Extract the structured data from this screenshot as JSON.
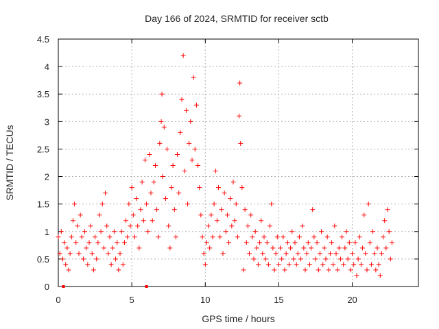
{
  "chart_data": {
    "type": "scatter",
    "title": "Day 166 of 2024, SRMTID for receiver sctb",
    "xlabel": "GPS time / hours",
    "ylabel": "SRMTID / TECUs",
    "xlim": [
      0,
      24.5
    ],
    "ylim": [
      0,
      4.5
    ],
    "xticks": [
      0,
      5,
      10,
      15,
      20
    ],
    "yticks": [
      0,
      0.5,
      1,
      1.5,
      2,
      2.5,
      3,
      3.5,
      4,
      4.5
    ],
    "xtick_labels": [
      "0",
      "5",
      "10",
      "15",
      "20"
    ],
    "ytick_labels": [
      "0",
      "0.5",
      "1",
      "1.5",
      "2",
      "2.5",
      "3",
      "3.5",
      "4",
      "4.5"
    ],
    "grid": true,
    "marker": "+",
    "color": "#ff0000",
    "series": [
      {
        "name": "SRMTID",
        "points": [
          [
            0.0,
            0.9
          ],
          [
            0.1,
            0.6
          ],
          [
            0.2,
            1.0
          ],
          [
            0.3,
            0.5
          ],
          [
            0.4,
            0.8
          ],
          [
            0.5,
            0.4
          ],
          [
            0.6,
            0.7
          ],
          [
            0.7,
            0.3
          ],
          [
            0.8,
            0.6
          ],
          [
            0.9,
            0.9
          ],
          [
            1.0,
            1.2
          ],
          [
            1.1,
            1.5
          ],
          [
            1.2,
            0.8
          ],
          [
            1.3,
            1.1
          ],
          [
            1.4,
            0.6
          ],
          [
            1.5,
            1.3
          ],
          [
            1.6,
            0.9
          ],
          [
            1.7,
            0.5
          ],
          [
            1.8,
            1.0
          ],
          [
            1.9,
            0.7
          ],
          [
            2.0,
            0.4
          ],
          [
            2.1,
            0.8
          ],
          [
            2.2,
            1.1
          ],
          [
            2.3,
            0.6
          ],
          [
            2.4,
            0.3
          ],
          [
            2.5,
            0.9
          ],
          [
            2.6,
            0.5
          ],
          [
            2.7,
            0.8
          ],
          [
            2.8,
            1.3
          ],
          [
            2.9,
            1.0
          ],
          [
            3.0,
            1.5
          ],
          [
            3.1,
            0.7
          ],
          [
            3.2,
            1.7
          ],
          [
            3.3,
            1.1
          ],
          [
            3.4,
            0.6
          ],
          [
            3.5,
            0.9
          ],
          [
            3.6,
            0.4
          ],
          [
            3.7,
            0.7
          ],
          [
            3.8,
            1.0
          ],
          [
            3.9,
            0.5
          ],
          [
            4.0,
            0.8
          ],
          [
            4.1,
            0.3
          ],
          [
            4.2,
            0.6
          ],
          [
            4.3,
            1.0
          ],
          [
            4.4,
            0.4
          ],
          [
            4.5,
            0.8
          ],
          [
            4.6,
            1.2
          ],
          [
            4.7,
            0.9
          ],
          [
            4.8,
            1.5
          ],
          [
            4.9,
            1.1
          ],
          [
            5.0,
            1.8
          ],
          [
            5.1,
            1.3
          ],
          [
            5.2,
            0.9
          ],
          [
            5.3,
            1.6
          ],
          [
            5.4,
            1.1
          ],
          [
            5.5,
            0.7
          ],
          [
            5.6,
            1.4
          ],
          [
            5.7,
            1.9
          ],
          [
            5.8,
            1.2
          ],
          [
            5.9,
            2.3
          ],
          [
            6.0,
            1.5
          ],
          [
            6.1,
            1.0
          ],
          [
            6.2,
            2.4
          ],
          [
            6.3,
            1.7
          ],
          [
            6.4,
            1.2
          ],
          [
            6.5,
            1.9
          ],
          [
            6.6,
            2.2
          ],
          [
            6.7,
            1.4
          ],
          [
            6.8,
            0.9
          ],
          [
            6.9,
            2.6
          ],
          [
            7.0,
            3.0
          ],
          [
            7.05,
            3.5
          ],
          [
            7.1,
            2.0
          ],
          [
            7.2,
            2.9
          ],
          [
            7.3,
            1.6
          ],
          [
            7.4,
            2.5
          ],
          [
            7.5,
            1.1
          ],
          [
            7.6,
            0.7
          ],
          [
            7.7,
            1.8
          ],
          [
            7.8,
            2.2
          ],
          [
            7.9,
            1.4
          ],
          [
            8.0,
            0.9
          ],
          [
            8.1,
            2.4
          ],
          [
            8.2,
            1.7
          ],
          [
            8.3,
            2.8
          ],
          [
            8.4,
            3.4
          ],
          [
            8.5,
            4.2
          ],
          [
            8.6,
            2.1
          ],
          [
            8.7,
            3.2
          ],
          [
            8.8,
            1.5
          ],
          [
            8.9,
            2.6
          ],
          [
            9.0,
            3.0
          ],
          [
            9.1,
            2.3
          ],
          [
            9.2,
            3.8
          ],
          [
            9.3,
            2.5
          ],
          [
            9.4,
            3.3
          ],
          [
            9.5,
            2.2
          ],
          [
            9.6,
            1.8
          ],
          [
            9.7,
            1.3
          ],
          [
            9.8,
            0.9
          ],
          [
            9.9,
            0.6
          ],
          [
            10.0,
            0.4
          ],
          [
            10.1,
            0.8
          ],
          [
            10.2,
            1.1
          ],
          [
            10.3,
            0.7
          ],
          [
            10.4,
            1.3
          ],
          [
            10.5,
            0.9
          ],
          [
            10.6,
            1.5
          ],
          [
            10.7,
            2.1
          ],
          [
            10.8,
            1.2
          ],
          [
            10.9,
            1.8
          ],
          [
            11.0,
            0.9
          ],
          [
            11.1,
            1.4
          ],
          [
            11.2,
            0.6
          ],
          [
            11.3,
            1.7
          ],
          [
            11.4,
            1.0
          ],
          [
            11.5,
            1.3
          ],
          [
            11.6,
            0.8
          ],
          [
            11.7,
            1.6
          ],
          [
            11.8,
            1.1
          ],
          [
            11.9,
            1.9
          ],
          [
            12.0,
            1.2
          ],
          [
            12.1,
            1.5
          ],
          [
            12.2,
            0.9
          ],
          [
            12.3,
            3.1
          ],
          [
            12.35,
            3.7
          ],
          [
            12.4,
            2.6
          ],
          [
            12.5,
            1.8
          ],
          [
            12.6,
            0.3
          ],
          [
            12.7,
            1.4
          ],
          [
            12.8,
            0.8
          ],
          [
            12.9,
            1.1
          ],
          [
            13.0,
            0.6
          ],
          [
            13.1,
            1.3
          ],
          [
            13.2,
            0.9
          ],
          [
            13.3,
            0.5
          ],
          [
            13.4,
            1.0
          ],
          [
            13.5,
            0.7
          ],
          [
            13.6,
            0.4
          ],
          [
            13.7,
            0.8
          ],
          [
            13.8,
            1.2
          ],
          [
            13.9,
            0.6
          ],
          [
            14.0,
            0.9
          ],
          [
            14.1,
            0.5
          ],
          [
            14.2,
            0.8
          ],
          [
            14.3,
            0.4
          ],
          [
            14.4,
            1.1
          ],
          [
            14.5,
            1.5
          ],
          [
            14.6,
            0.7
          ],
          [
            14.7,
            0.3
          ],
          [
            14.8,
            0.6
          ],
          [
            14.9,
            0.9
          ],
          [
            15.0,
            0.4
          ],
          [
            15.1,
            0.7
          ],
          [
            15.2,
            0.5
          ],
          [
            15.3,
            0.9
          ],
          [
            15.4,
            0.3
          ],
          [
            15.5,
            0.6
          ],
          [
            15.6,
            0.8
          ],
          [
            15.7,
            0.4
          ],
          [
            15.8,
            0.7
          ],
          [
            15.9,
            1.0
          ],
          [
            16.0,
            0.5
          ],
          [
            16.1,
            0.8
          ],
          [
            16.2,
            0.4
          ],
          [
            16.3,
            0.6
          ],
          [
            16.4,
            0.9
          ],
          [
            16.5,
            0.5
          ],
          [
            16.6,
            1.1
          ],
          [
            16.7,
            0.7
          ],
          [
            16.8,
            0.3
          ],
          [
            16.9,
            0.6
          ],
          [
            17.0,
            0.8
          ],
          [
            17.1,
            0.4
          ],
          [
            17.2,
            0.7
          ],
          [
            17.3,
            1.4
          ],
          [
            17.4,
            0.9
          ],
          [
            17.5,
            0.5
          ],
          [
            17.6,
            0.8
          ],
          [
            17.7,
            0.3
          ],
          [
            17.8,
            0.6
          ],
          [
            17.9,
            1.0
          ],
          [
            18.0,
            0.4
          ],
          [
            18.1,
            0.7
          ],
          [
            18.2,
            0.5
          ],
          [
            18.3,
            0.9
          ],
          [
            18.4,
            0.3
          ],
          [
            18.5,
            0.6
          ],
          [
            18.6,
            0.8
          ],
          [
            18.7,
            0.4
          ],
          [
            18.8,
            1.1
          ],
          [
            18.9,
            0.6
          ],
          [
            19.0,
            0.3
          ],
          [
            19.1,
            0.7
          ],
          [
            19.2,
            0.5
          ],
          [
            19.3,
            0.9
          ],
          [
            19.4,
            0.4
          ],
          [
            19.5,
            0.7
          ],
          [
            19.6,
            1.0
          ],
          [
            19.7,
            0.5
          ],
          [
            19.8,
            0.8
          ],
          [
            19.9,
            0.3
          ],
          [
            20.0,
            0.6
          ],
          [
            20.1,
            0.4
          ],
          [
            20.2,
            0.8
          ],
          [
            20.3,
            0.2
          ],
          [
            20.4,
            0.5
          ],
          [
            20.5,
            0.9
          ],
          [
            20.6,
            0.4
          ],
          [
            20.7,
            0.7
          ],
          [
            20.8,
            1.3
          ],
          [
            20.9,
            0.6
          ],
          [
            21.0,
            0.3
          ],
          [
            21.1,
            1.5
          ],
          [
            21.2,
            0.8
          ],
          [
            21.3,
            0.4
          ],
          [
            21.4,
            1.0
          ],
          [
            21.5,
            0.6
          ],
          [
            21.6,
            0.3
          ],
          [
            21.7,
            0.7
          ],
          [
            21.8,
            0.4
          ],
          [
            21.9,
            0.2
          ],
          [
            22.0,
            0.6
          ],
          [
            22.1,
            0.9
          ],
          [
            22.2,
            1.2
          ],
          [
            22.3,
            0.7
          ],
          [
            22.4,
            1.4
          ],
          [
            22.5,
            1.0
          ],
          [
            22.6,
            0.5
          ],
          [
            22.7,
            0.8
          ]
        ]
      }
    ],
    "low_markers": [
      [
        0.35,
        0.0
      ],
      [
        6.0,
        0.0
      ]
    ]
  }
}
